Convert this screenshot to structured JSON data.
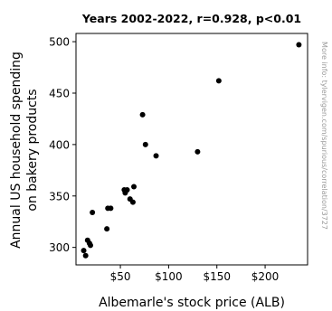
{
  "chart_data": {
    "type": "scatter",
    "title": "Years 2002-2022, r=0.928, p<0.01",
    "xlabel": "Albemarle's stock price (ALB)",
    "ylabel_line1": "Annual US household spending",
    "ylabel_line2": "on bakery products",
    "xlim": [
      4,
      244
    ],
    "ylim": [
      283,
      508
    ],
    "x_ticks": [
      {
        "value": 50,
        "label": "$50"
      },
      {
        "value": 100,
        "label": "$100"
      },
      {
        "value": 150,
        "label": "$150"
      },
      {
        "value": 200,
        "label": "$200"
      }
    ],
    "y_ticks": [
      {
        "value": 300,
        "label": "300"
      },
      {
        "value": 350,
        "label": "350"
      },
      {
        "value": 400,
        "label": "400"
      },
      {
        "value": 450,
        "label": "450"
      },
      {
        "value": 500,
        "label": "500"
      }
    ],
    "grid": false,
    "legend": "none",
    "point_color": "#000000",
    "watermark": "More info: tylervigen.com/spurious/correlation/3727",
    "points": [
      {
        "x": 12,
        "y": 297
      },
      {
        "x": 14,
        "y": 292
      },
      {
        "x": 16,
        "y": 307
      },
      {
        "x": 18,
        "y": 304
      },
      {
        "x": 19,
        "y": 302
      },
      {
        "x": 21,
        "y": 334
      },
      {
        "x": 36,
        "y": 318
      },
      {
        "x": 37,
        "y": 338
      },
      {
        "x": 40,
        "y": 338
      },
      {
        "x": 54,
        "y": 356
      },
      {
        "x": 55,
        "y": 353
      },
      {
        "x": 57,
        "y": 356
      },
      {
        "x": 60,
        "y": 347
      },
      {
        "x": 63,
        "y": 344
      },
      {
        "x": 64,
        "y": 359
      },
      {
        "x": 73,
        "y": 429
      },
      {
        "x": 76,
        "y": 400
      },
      {
        "x": 87,
        "y": 389
      },
      {
        "x": 130,
        "y": 393
      },
      {
        "x": 152,
        "y": 462
      },
      {
        "x": 235,
        "y": 497
      }
    ]
  }
}
